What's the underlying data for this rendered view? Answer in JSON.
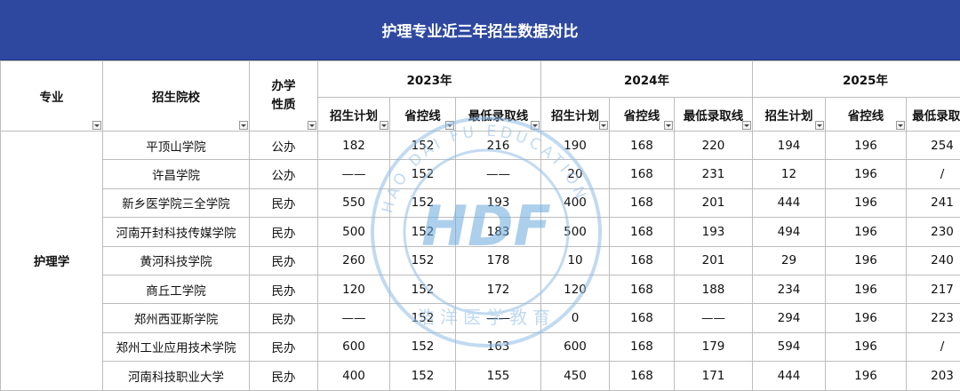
{
  "title": "护理专业近三年招生数据对比",
  "headers": {
    "major": "专业",
    "school": "招生院校",
    "nature": "办学性质",
    "years": [
      "2023年",
      "2024年",
      "2025年"
    ],
    "sub": [
      "招生计划",
      "省控线",
      "最低录取线"
    ]
  },
  "major_name": "护理学",
  "rows": [
    {
      "school": "平顶山学院",
      "nature": "公办",
      "y2023": [
        "182",
        "152",
        "216"
      ],
      "y2024": [
        "190",
        "168",
        "220"
      ],
      "y2025": [
        "194",
        "196",
        "254"
      ]
    },
    {
      "school": "许昌学院",
      "nature": "公办",
      "y2023": [
        "——",
        "152",
        "——"
      ],
      "y2024": [
        "20",
        "168",
        "231"
      ],
      "y2025": [
        "12",
        "196",
        "/"
      ]
    },
    {
      "school": "新乡医学院三全学院",
      "nature": "民办",
      "y2023": [
        "550",
        "152",
        "193"
      ],
      "y2024": [
        "400",
        "168",
        "201"
      ],
      "y2025": [
        "444",
        "196",
        "241"
      ]
    },
    {
      "school": "河南开封科技传媒学院",
      "nature": "民办",
      "y2023": [
        "500",
        "152",
        "183"
      ],
      "y2024": [
        "500",
        "168",
        "193"
      ],
      "y2025": [
        "494",
        "196",
        "230"
      ]
    },
    {
      "school": "黄河科技学院",
      "nature": "民办",
      "y2023": [
        "260",
        "152",
        "178"
      ],
      "y2024": [
        "10",
        "168",
        "201"
      ],
      "y2025": [
        "29",
        "196",
        "240"
      ]
    },
    {
      "school": "商丘工学院",
      "nature": "民办",
      "y2023": [
        "120",
        "152",
        "172"
      ],
      "y2024": [
        "120",
        "168",
        "188"
      ],
      "y2025": [
        "234",
        "196",
        "217"
      ]
    },
    {
      "school": "郑州西亚斯学院",
      "nature": "民办",
      "y2023": [
        "——",
        "152",
        "——"
      ],
      "y2024": [
        "0",
        "168",
        "——"
      ],
      "y2025": [
        "294",
        "196",
        "223"
      ]
    },
    {
      "school": "郑州工业应用技术学院",
      "nature": "民办",
      "y2023": [
        "600",
        "152",
        "163"
      ],
      "y2024": [
        "600",
        "168",
        "179"
      ],
      "y2025": [
        "594",
        "196",
        "/"
      ]
    },
    {
      "school": "河南科技职业大学",
      "nature": "民办",
      "y2023": [
        "400",
        "152",
        "155"
      ],
      "y2024": [
        "450",
        "168",
        "171"
      ],
      "y2025": [
        "444",
        "196",
        "203"
      ]
    }
  ],
  "watermark": {
    "logo": "HDF",
    "ring_text": "HAO DAI FU EDUCATION",
    "cn_text": "浩洋医学教育"
  }
}
